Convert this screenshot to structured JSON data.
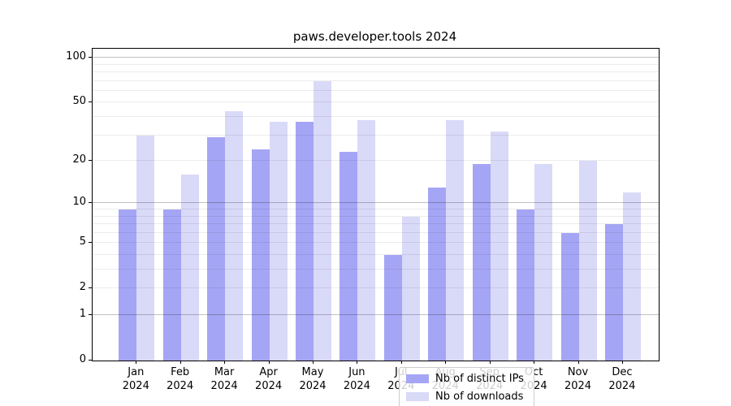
{
  "chart_data": {
    "type": "bar",
    "title": "paws.developer.tools 2024",
    "categories": [
      "Jan",
      "Feb",
      "Mar",
      "Apr",
      "May",
      "Jun",
      "Jul",
      "Aug",
      "Sep",
      "Oct",
      "Nov",
      "Dec"
    ],
    "category_year": "2024",
    "series": [
      {
        "name": "Nb of distinct IPs",
        "color": "#a5a5f5",
        "values": [
          9,
          9,
          29,
          24,
          37,
          23,
          4,
          13,
          19,
          9,
          6,
          7
        ]
      },
      {
        "name": "Nb of downloads",
        "color": "#d9d9f8",
        "values": [
          30,
          16,
          44,
          37,
          70,
          38,
          8,
          38,
          32,
          19,
          20,
          12
        ]
      }
    ],
    "yscale": "log1p",
    "ylim": [
      0,
      115
    ],
    "yticks": [
      0,
      1,
      2,
      5,
      10,
      20,
      50,
      100
    ],
    "ytick_labels": [
      "0",
      "1",
      "2",
      "5",
      "10",
      "20",
      "50",
      "100"
    ],
    "minor_gridlines": [
      2,
      3,
      4,
      5,
      6,
      7,
      8,
      9,
      20,
      30,
      40,
      50,
      60,
      70,
      80,
      90
    ],
    "major_gridlines": [
      1,
      10,
      100
    ],
    "legend_position": "lower center",
    "grid": "on",
    "colors": {
      "axis": "#000000",
      "background": "#ffffff",
      "legend_border": "#cccccc"
    }
  }
}
